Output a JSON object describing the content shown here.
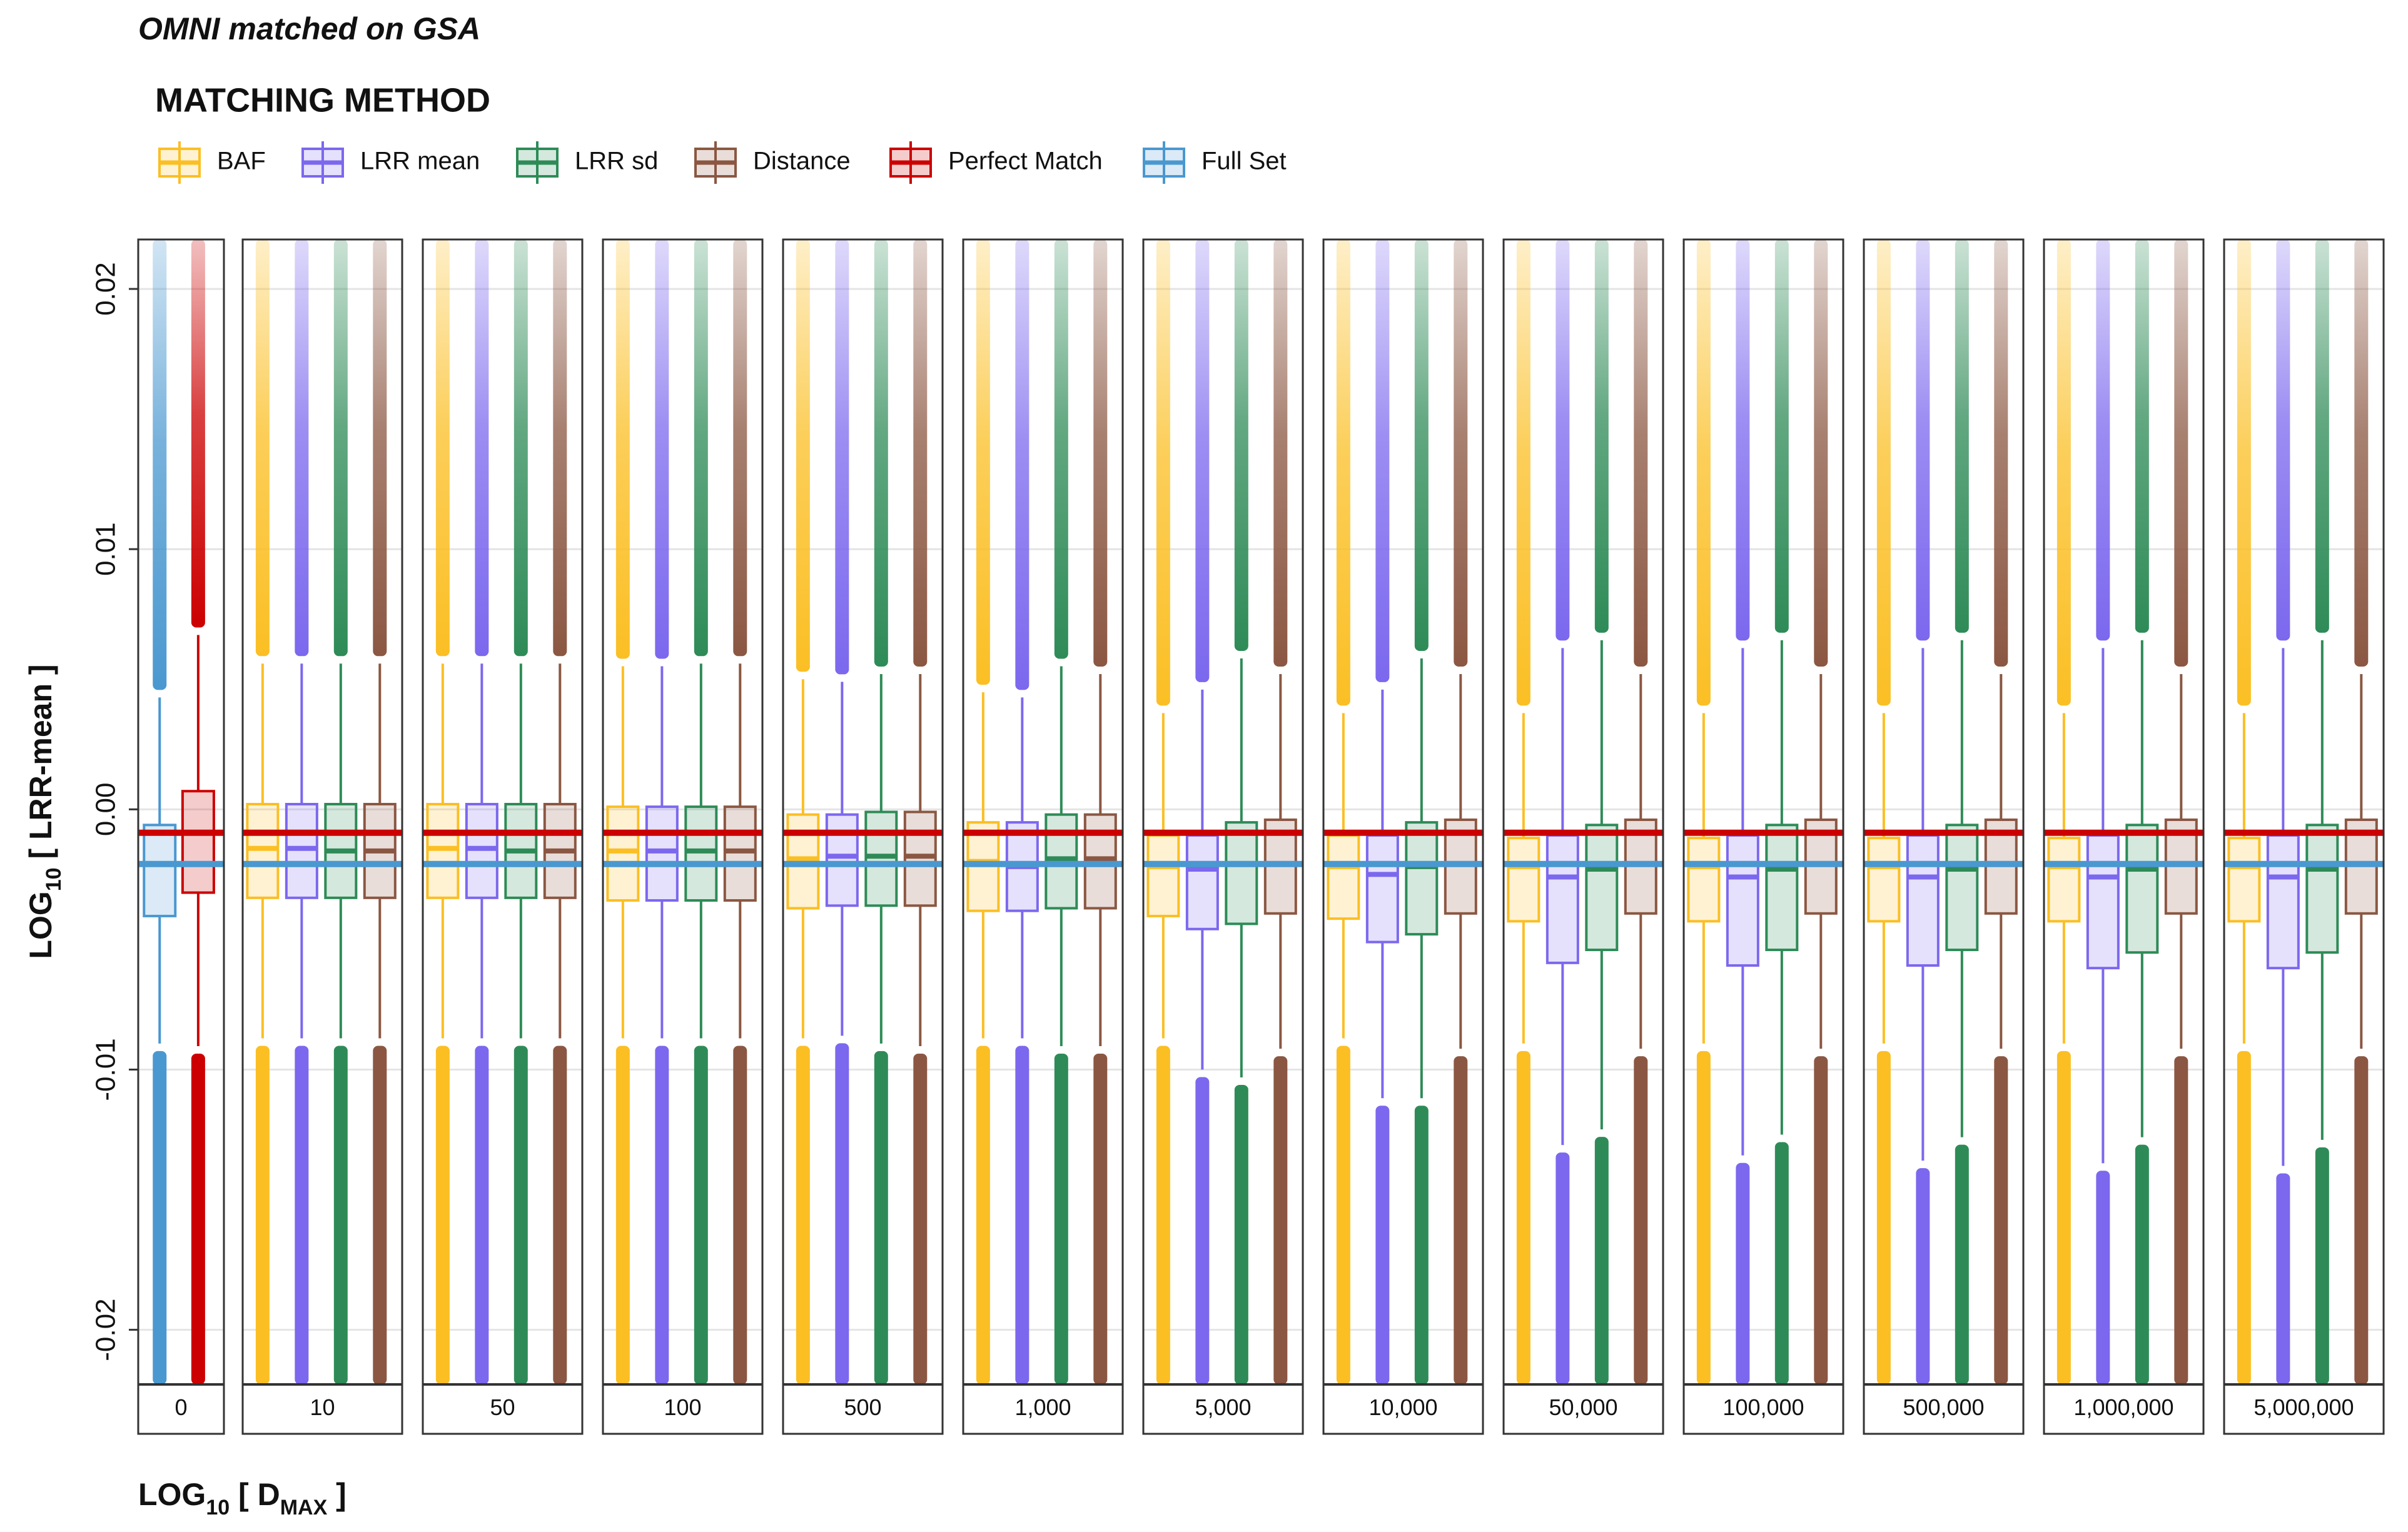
{
  "chart_data": {
    "type": "box",
    "title": "OMNI matched on GSA",
    "legend_title": "MATCHING METHOD",
    "x_label": [
      "LOG",
      "10",
      " [ D",
      "MAX",
      " ]"
    ],
    "y_label": [
      "LOG",
      "10",
      " [ LRR-mean ]"
    ],
    "ylim": [
      -0.0221,
      0.0219
    ],
    "yticks": [
      -0.02,
      -0.01,
      {
        "value": 0,
        "label": "0.00"
      },
      0.01,
      0.02
    ],
    "grid": true,
    "series": [
      {
        "name": "BAF",
        "color": "#fbbf24"
      },
      {
        "name": "LRR mean",
        "color": "#7b68ee"
      },
      {
        "name": "LRR sd",
        "color": "#2e8b57"
      },
      {
        "name": "Distance",
        "color": "#8b5742"
      },
      {
        "name": "Perfect Match",
        "color": "#cc0000"
      },
      {
        "name": "Full Set",
        "color": "#4a98d0"
      }
    ],
    "reference_lines": [
      {
        "series": 4,
        "facet": 0,
        "box": 1
      },
      {
        "series": 5,
        "facet": 0,
        "box": 0
      }
    ],
    "facets": [
      {
        "label": "0",
        "boxes": [
          {
            "series": 5,
            "whisker_low": -0.009,
            "q1": -0.0041,
            "median": -0.0021,
            "q3": -0.0006,
            "whisker_high": 0.0043
          },
          {
            "series": 4,
            "whisker_low": -0.0091,
            "q1": -0.0032,
            "median": -0.0009,
            "q3": 0.0007,
            "whisker_high": 0.0067
          }
        ]
      },
      {
        "label": "10",
        "boxes": [
          {
            "series": 0,
            "whisker_low": -0.0088,
            "q1": -0.0034,
            "median": -0.0015,
            "q3": 0.0002,
            "whisker_high": 0.0056
          },
          {
            "series": 1,
            "whisker_low": -0.0088,
            "q1": -0.0034,
            "median": -0.0015,
            "q3": 0.0002,
            "whisker_high": 0.0056
          },
          {
            "series": 2,
            "whisker_low": -0.0088,
            "q1": -0.0034,
            "median": -0.0016,
            "q3": 0.0002,
            "whisker_high": 0.0056
          },
          {
            "series": 3,
            "whisker_low": -0.0088,
            "q1": -0.0034,
            "median": -0.0016,
            "q3": 0.0002,
            "whisker_high": 0.0056
          }
        ]
      },
      {
        "label": "50",
        "boxes": [
          {
            "series": 0,
            "whisker_low": -0.0088,
            "q1": -0.0034,
            "median": -0.0015,
            "q3": 0.0002,
            "whisker_high": 0.0056
          },
          {
            "series": 1,
            "whisker_low": -0.0088,
            "q1": -0.0034,
            "median": -0.0015,
            "q3": 0.0002,
            "whisker_high": 0.0056
          },
          {
            "series": 2,
            "whisker_low": -0.0088,
            "q1": -0.0034,
            "median": -0.0016,
            "q3": 0.0002,
            "whisker_high": 0.0056
          },
          {
            "series": 3,
            "whisker_low": -0.0088,
            "q1": -0.0034,
            "median": -0.0016,
            "q3": 0.0002,
            "whisker_high": 0.0056
          }
        ]
      },
      {
        "label": "100",
        "boxes": [
          {
            "series": 0,
            "whisker_low": -0.0088,
            "q1": -0.0035,
            "median": -0.0016,
            "q3": 0.0001,
            "whisker_high": 0.0055
          },
          {
            "series": 1,
            "whisker_low": -0.0088,
            "q1": -0.0035,
            "median": -0.0016,
            "q3": 0.0001,
            "whisker_high": 0.0055
          },
          {
            "series": 2,
            "whisker_low": -0.0088,
            "q1": -0.0035,
            "median": -0.0016,
            "q3": 0.0001,
            "whisker_high": 0.0056
          },
          {
            "series": 3,
            "whisker_low": -0.0088,
            "q1": -0.0035,
            "median": -0.0016,
            "q3": 0.0001,
            "whisker_high": 0.0056
          }
        ]
      },
      {
        "label": "500",
        "boxes": [
          {
            "series": 0,
            "whisker_low": -0.0088,
            "q1": -0.0038,
            "median": -0.0019,
            "q3": -0.0002,
            "whisker_high": 0.005
          },
          {
            "series": 1,
            "whisker_low": -0.0087,
            "q1": -0.0037,
            "median": -0.0018,
            "q3": -0.0002,
            "whisker_high": 0.0049
          },
          {
            "series": 2,
            "whisker_low": -0.009,
            "q1": -0.0037,
            "median": -0.0018,
            "q3": -0.0001,
            "whisker_high": 0.0052
          },
          {
            "series": 3,
            "whisker_low": -0.0091,
            "q1": -0.0037,
            "median": -0.0018,
            "q3": -0.0001,
            "whisker_high": 0.0052
          }
        ]
      },
      {
        "label": "1,000",
        "boxes": [
          {
            "series": 0,
            "whisker_low": -0.0088,
            "q1": -0.0039,
            "median": -0.002,
            "q3": -0.0005,
            "whisker_high": 0.0045
          },
          {
            "series": 1,
            "whisker_low": -0.0088,
            "q1": -0.0039,
            "median": -0.0022,
            "q3": -0.0005,
            "whisker_high": 0.0043
          },
          {
            "series": 2,
            "whisker_low": -0.0091,
            "q1": -0.0038,
            "median": -0.0019,
            "q3": -0.0002,
            "whisker_high": 0.0055
          },
          {
            "series": 3,
            "whisker_low": -0.0091,
            "q1": -0.0038,
            "median": -0.0019,
            "q3": -0.0002,
            "whisker_high": 0.0052
          }
        ]
      },
      {
        "label": "5,000",
        "boxes": [
          {
            "series": 0,
            "whisker_low": -0.0088,
            "q1": -0.0041,
            "median": -0.0022,
            "q3": -0.001,
            "whisker_high": 0.0037
          },
          {
            "series": 1,
            "whisker_low": -0.01,
            "q1": -0.0046,
            "median": -0.0023,
            "q3": -0.001,
            "whisker_high": 0.0046
          },
          {
            "series": 2,
            "whisker_low": -0.0103,
            "q1": -0.0044,
            "median": -0.0021,
            "q3": -0.0005,
            "whisker_high": 0.0058
          },
          {
            "series": 3,
            "whisker_low": -0.0092,
            "q1": -0.004,
            "median": -0.0021,
            "q3": -0.0004,
            "whisker_high": 0.0052
          }
        ]
      },
      {
        "label": "10,000",
        "boxes": [
          {
            "series": 0,
            "whisker_low": -0.0088,
            "q1": -0.0042,
            "median": -0.0022,
            "q3": -0.001,
            "whisker_high": 0.0037
          },
          {
            "series": 1,
            "whisker_low": -0.0111,
            "q1": -0.0051,
            "median": -0.0025,
            "q3": -0.001,
            "whisker_high": 0.0046
          },
          {
            "series": 2,
            "whisker_low": -0.0111,
            "q1": -0.0048,
            "median": -0.0022,
            "q3": -0.0005,
            "whisker_high": 0.0058
          },
          {
            "series": 3,
            "whisker_low": -0.0092,
            "q1": -0.004,
            "median": -0.0021,
            "q3": -0.0004,
            "whisker_high": 0.0052
          }
        ]
      },
      {
        "label": "50,000",
        "boxes": [
          {
            "series": 0,
            "whisker_low": -0.009,
            "q1": -0.0043,
            "median": -0.0022,
            "q3": -0.0011,
            "whisker_high": 0.0037
          },
          {
            "series": 1,
            "whisker_low": -0.0129,
            "q1": -0.0059,
            "median": -0.0026,
            "q3": -0.001,
            "whisker_high": 0.0062
          },
          {
            "series": 2,
            "whisker_low": -0.0123,
            "q1": -0.0054,
            "median": -0.0023,
            "q3": -0.0006,
            "whisker_high": 0.0065
          },
          {
            "series": 3,
            "whisker_low": -0.0092,
            "q1": -0.004,
            "median": -0.0021,
            "q3": -0.0004,
            "whisker_high": 0.0052
          }
        ]
      },
      {
        "label": "100,000",
        "boxes": [
          {
            "series": 0,
            "whisker_low": -0.009,
            "q1": -0.0043,
            "median": -0.0022,
            "q3": -0.0011,
            "whisker_high": 0.0037
          },
          {
            "series": 1,
            "whisker_low": -0.0133,
            "q1": -0.006,
            "median": -0.0026,
            "q3": -0.001,
            "whisker_high": 0.0062
          },
          {
            "series": 2,
            "whisker_low": -0.0125,
            "q1": -0.0054,
            "median": -0.0023,
            "q3": -0.0006,
            "whisker_high": 0.0065
          },
          {
            "series": 3,
            "whisker_low": -0.0092,
            "q1": -0.004,
            "median": -0.0021,
            "q3": -0.0004,
            "whisker_high": 0.0052
          }
        ]
      },
      {
        "label": "500,000",
        "boxes": [
          {
            "series": 0,
            "whisker_low": -0.009,
            "q1": -0.0043,
            "median": -0.0022,
            "q3": -0.0011,
            "whisker_high": 0.0037
          },
          {
            "series": 1,
            "whisker_low": -0.0135,
            "q1": -0.006,
            "median": -0.0026,
            "q3": -0.001,
            "whisker_high": 0.0062
          },
          {
            "series": 2,
            "whisker_low": -0.0126,
            "q1": -0.0054,
            "median": -0.0023,
            "q3": -0.0006,
            "whisker_high": 0.0065
          },
          {
            "series": 3,
            "whisker_low": -0.0092,
            "q1": -0.004,
            "median": -0.0021,
            "q3": -0.0004,
            "whisker_high": 0.0052
          }
        ]
      },
      {
        "label": "1,000,000",
        "boxes": [
          {
            "series": 0,
            "whisker_low": -0.009,
            "q1": -0.0043,
            "median": -0.0022,
            "q3": -0.0011,
            "whisker_high": 0.0037
          },
          {
            "series": 1,
            "whisker_low": -0.0136,
            "q1": -0.0061,
            "median": -0.0026,
            "q3": -0.001,
            "whisker_high": 0.0062
          },
          {
            "series": 2,
            "whisker_low": -0.0126,
            "q1": -0.0055,
            "median": -0.0023,
            "q3": -0.0006,
            "whisker_high": 0.0065
          },
          {
            "series": 3,
            "whisker_low": -0.0092,
            "q1": -0.004,
            "median": -0.0021,
            "q3": -0.0004,
            "whisker_high": 0.0052
          }
        ]
      },
      {
        "label": "5,000,000",
        "boxes": [
          {
            "series": 0,
            "whisker_low": -0.009,
            "q1": -0.0043,
            "median": -0.0022,
            "q3": -0.0011,
            "whisker_high": 0.0037
          },
          {
            "series": 1,
            "whisker_low": -0.0137,
            "q1": -0.0061,
            "median": -0.0026,
            "q3": -0.001,
            "whisker_high": 0.0062
          },
          {
            "series": 2,
            "whisker_low": -0.0127,
            "q1": -0.0055,
            "median": -0.0023,
            "q3": -0.0006,
            "whisker_high": 0.0065
          },
          {
            "series": 3,
            "whisker_low": -0.0092,
            "q1": -0.004,
            "median": -0.0021,
            "q3": -0.0004,
            "whisker_high": 0.0052
          }
        ]
      }
    ]
  }
}
